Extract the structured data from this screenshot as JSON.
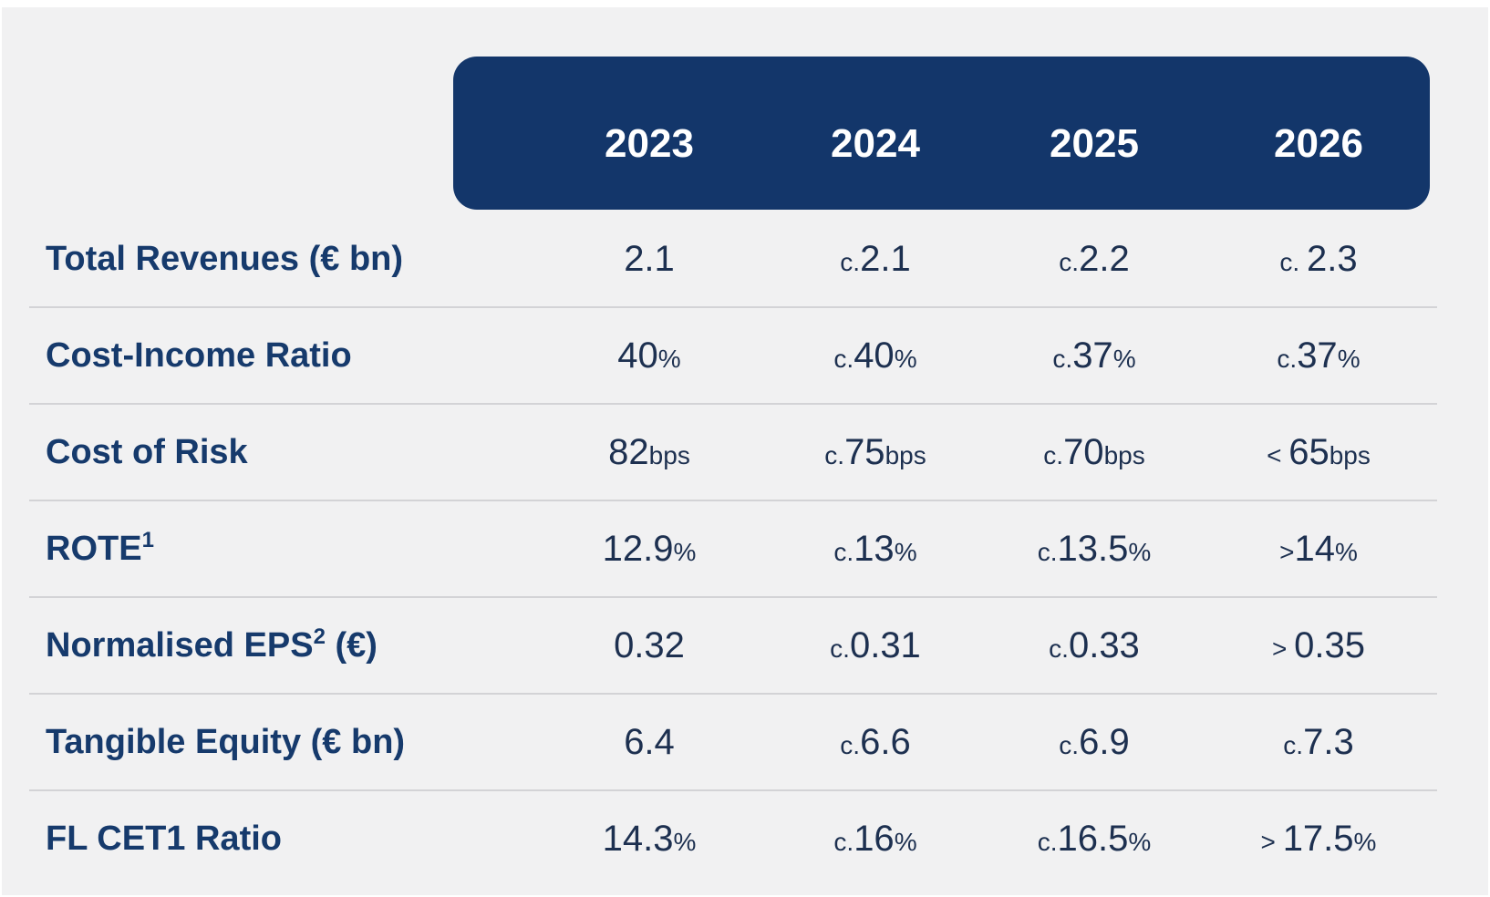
{
  "chart_data": {
    "type": "table",
    "columns": [
      "2023",
      "2024",
      "2025",
      "2026"
    ],
    "rows": [
      {
        "label": "Total Revenues (€ bn)",
        "sup": "",
        "label_tail": "",
        "cells": [
          {
            "pre": "",
            "num": "2.1",
            "suf": ""
          },
          {
            "pre": "c.",
            "num": "2.1",
            "suf": ""
          },
          {
            "pre": "c.",
            "num": "2.2",
            "suf": ""
          },
          {
            "pre": "c. ",
            "num": "2.3",
            "suf": ""
          }
        ]
      },
      {
        "label": "Cost-Income Ratio",
        "sup": "",
        "label_tail": "",
        "cells": [
          {
            "pre": "",
            "num": "40",
            "suf": "%"
          },
          {
            "pre": "c.",
            "num": "40",
            "suf": "%"
          },
          {
            "pre": "c.",
            "num": "37",
            "suf": "%"
          },
          {
            "pre": "c.",
            "num": "37",
            "suf": "%"
          }
        ]
      },
      {
        "label": "Cost of Risk",
        "sup": "",
        "label_tail": "",
        "cells": [
          {
            "pre": "",
            "num": "82",
            "suf": "bps"
          },
          {
            "pre": "c.",
            "num": "75",
            "suf": "bps"
          },
          {
            "pre": "c.",
            "num": "70",
            "suf": "bps"
          },
          {
            "pre": "< ",
            "num": "65",
            "suf": "bps"
          }
        ]
      },
      {
        "label": "ROTE",
        "sup": "1",
        "label_tail": "",
        "cells": [
          {
            "pre": "",
            "num": "12.9",
            "suf": "%"
          },
          {
            "pre": "c.",
            "num": "13",
            "suf": "%"
          },
          {
            "pre": "c.",
            "num": "13.5",
            "suf": "%"
          },
          {
            "pre": ">",
            "num": "14",
            "suf": "%"
          }
        ]
      },
      {
        "label": "Normalised EPS",
        "sup": "2",
        "label_tail": " (€)",
        "cells": [
          {
            "pre": "",
            "num": "0.32",
            "suf": ""
          },
          {
            "pre": "c.",
            "num": "0.31",
            "suf": ""
          },
          {
            "pre": "c.",
            "num": "0.33",
            "suf": ""
          },
          {
            "pre": "> ",
            "num": "0.35",
            "suf": ""
          }
        ]
      },
      {
        "label": "Tangible Equity (€ bn)",
        "sup": "",
        "label_tail": "",
        "cells": [
          {
            "pre": "",
            "num": "6.4",
            "suf": ""
          },
          {
            "pre": "c.",
            "num": "6.6",
            "suf": ""
          },
          {
            "pre": "c.",
            "num": "6.9",
            "suf": ""
          },
          {
            "pre": "c.",
            "num": "7.3",
            "suf": ""
          }
        ]
      },
      {
        "label": "FL CET1 Ratio",
        "sup": "",
        "label_tail": "",
        "cells": [
          {
            "pre": "",
            "num": "14.3",
            "suf": "%"
          },
          {
            "pre": "c.",
            "num": "16",
            "suf": "%"
          },
          {
            "pre": "c.",
            "num": "16.5",
            "suf": "%"
          },
          {
            "pre": "> ",
            "num": "17.5",
            "suf": "%"
          }
        ]
      }
    ]
  },
  "colors": {
    "header_background": "#13366a",
    "header_text": "#ffffff",
    "row_label": "#163a6c",
    "cell_text": "#1d3050",
    "panel_background": "#f1f1f2",
    "separator": "#d3d3d6"
  }
}
